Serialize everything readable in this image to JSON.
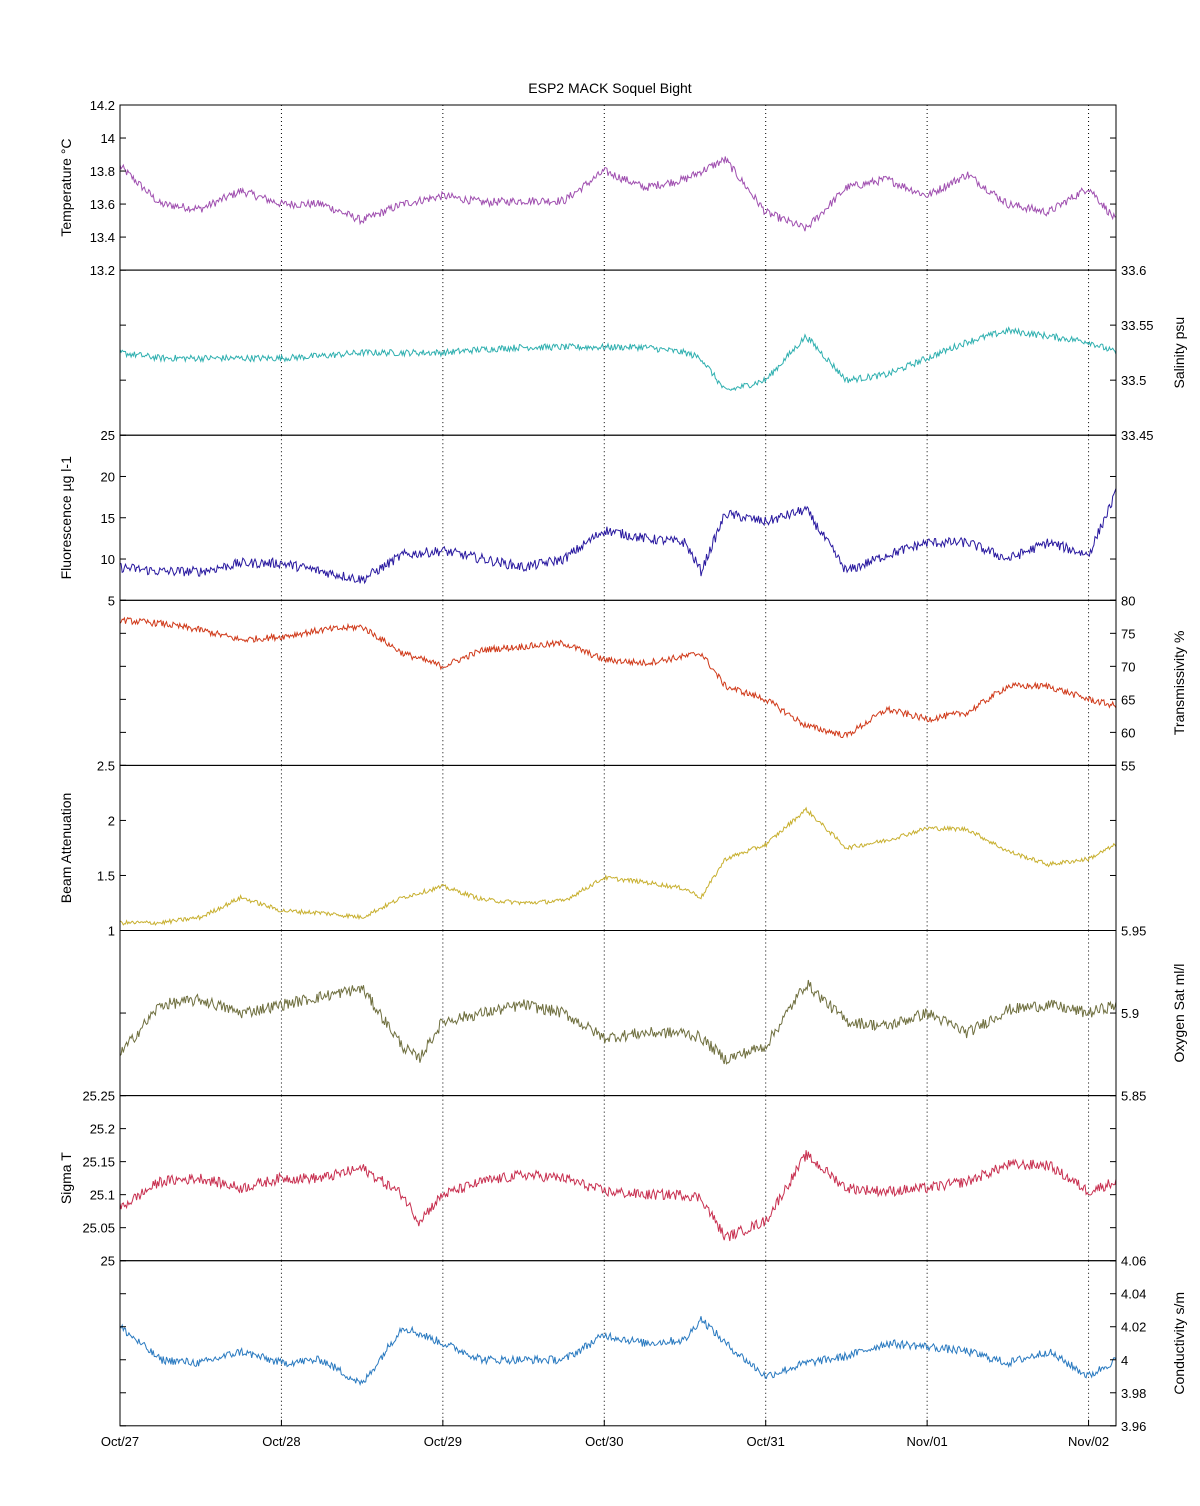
{
  "chart_data": {
    "type": "line",
    "title": "ESP2 MACK  Soquel Bight",
    "x_axis": {
      "ticks": [
        "Oct/27",
        "Oct/28",
        "Oct/29",
        "Oct/30",
        "Oct/31",
        "Nov/01",
        "Nov/02"
      ],
      "range_days": [
        0,
        6.17
      ],
      "grid": "dotted vertical"
    },
    "panels": [
      {
        "id": "temperature",
        "ylabel": "Temperature °C",
        "axis_side": "left",
        "ylim": [
          13.2,
          14.2
        ],
        "ticks": [
          13.2,
          13.4,
          13.6,
          13.8,
          14,
          14.2
        ],
        "tick_labels": [
          "13.2",
          "13.4",
          "13.6",
          "13.8",
          "14",
          "14.2"
        ],
        "color": "#a050b0",
        "x": [
          0,
          0.25,
          0.5,
          0.75,
          1.0,
          1.25,
          1.5,
          1.75,
          2.0,
          2.25,
          2.5,
          2.75,
          3.0,
          3.25,
          3.5,
          3.75,
          4.0,
          4.25,
          4.5,
          4.75,
          5.0,
          5.25,
          5.5,
          5.75,
          6.0,
          6.17
        ],
        "y": [
          13.83,
          13.6,
          13.57,
          13.68,
          13.6,
          13.6,
          13.5,
          13.6,
          13.65,
          13.61,
          13.62,
          13.62,
          13.8,
          13.7,
          13.75,
          13.87,
          13.55,
          13.45,
          13.7,
          13.75,
          13.65,
          13.78,
          13.6,
          13.55,
          13.7,
          13.5
        ],
        "noise": 0.025
      },
      {
        "id": "salinity",
        "ylabel": "Salinity psu",
        "axis_side": "right",
        "ylim": [
          33.45,
          33.6
        ],
        "ticks": [
          33.45,
          33.5,
          33.55,
          33.6
        ],
        "tick_labels": [
          "33.45",
          "33.5",
          "33.55",
          "33.6"
        ],
        "color": "#30b0b0",
        "x": [
          0,
          0.25,
          0.5,
          0.75,
          1.0,
          1.25,
          1.5,
          1.75,
          2.0,
          2.25,
          2.5,
          2.75,
          3.0,
          3.25,
          3.5,
          3.6,
          3.75,
          4.0,
          4.25,
          4.5,
          4.75,
          5.0,
          5.25,
          5.5,
          5.75,
          6.0,
          6.17
        ],
        "y": [
          33.525,
          33.52,
          33.52,
          33.52,
          33.52,
          33.522,
          33.525,
          33.525,
          33.525,
          33.528,
          33.53,
          33.53,
          33.53,
          33.53,
          33.525,
          33.52,
          33.49,
          33.5,
          33.54,
          33.5,
          33.505,
          33.52,
          33.535,
          33.545,
          33.54,
          33.535,
          33.525
        ],
        "noise": 0.003
      },
      {
        "id": "fluorescence",
        "ylabel": "Fluorescence µg l-1",
        "axis_side": "left",
        "ylim": [
          5,
          25
        ],
        "ticks": [
          5,
          10,
          15,
          20,
          25
        ],
        "tick_labels": [
          "5",
          "10",
          "15",
          "20",
          "25"
        ],
        "color": "#2a1aa0",
        "x": [
          0,
          0.25,
          0.5,
          0.75,
          1.0,
          1.25,
          1.5,
          1.75,
          2.0,
          2.25,
          2.5,
          2.75,
          3.0,
          3.25,
          3.5,
          3.6,
          3.75,
          4.0,
          4.25,
          4.5,
          4.75,
          5.0,
          5.25,
          5.5,
          5.75,
          6.0,
          6.17
        ],
        "y": [
          9,
          8.5,
          8.5,
          9.5,
          9.5,
          8.5,
          7.5,
          10.5,
          11,
          10,
          9,
          10,
          13.5,
          12.5,
          12,
          8.5,
          15.5,
          14.5,
          16,
          8.5,
          10.5,
          12,
          12,
          10,
          12,
          10.5,
          18
        ],
        "noise": 0.6
      },
      {
        "id": "transmissivity",
        "ylabel": "Transmissivity %",
        "axis_side": "right",
        "ylim": [
          55,
          80
        ],
        "ticks": [
          55,
          60,
          65,
          70,
          75,
          80
        ],
        "tick_labels": [
          "55",
          "60",
          "65",
          "70",
          "75",
          "80"
        ],
        "color": "#d03a1a",
        "x": [
          0,
          0.25,
          0.5,
          0.75,
          1.0,
          1.25,
          1.5,
          1.75,
          2.0,
          2.25,
          2.5,
          2.75,
          3.0,
          3.25,
          3.5,
          3.6,
          3.75,
          4.0,
          4.25,
          4.5,
          4.75,
          5.0,
          5.25,
          5.5,
          5.75,
          6.0,
          6.17
        ],
        "y": [
          77,
          76.5,
          75.5,
          74,
          74.5,
          75.5,
          76,
          72,
          70,
          72.5,
          73,
          73.5,
          71,
          70.5,
          71.5,
          72,
          67,
          65,
          61,
          59.5,
          63.5,
          62,
          63,
          67,
          67,
          65,
          64
        ],
        "noise": 0.5
      },
      {
        "id": "beam-attenuation",
        "ylabel": "Beam Attenuation",
        "axis_side": "left",
        "ylim": [
          1,
          2.5
        ],
        "ticks": [
          1,
          1.5,
          2,
          2.5
        ],
        "tick_labels": [
          "1",
          "1.5",
          "2",
          "2.5"
        ],
        "color": "#c8b030",
        "x": [
          0,
          0.25,
          0.5,
          0.75,
          1.0,
          1.25,
          1.5,
          1.75,
          2.0,
          2.25,
          2.5,
          2.75,
          3.0,
          3.25,
          3.5,
          3.6,
          3.75,
          4.0,
          4.25,
          4.5,
          4.75,
          5.0,
          5.25,
          5.5,
          5.75,
          6.0,
          6.17
        ],
        "y": [
          1.07,
          1.07,
          1.12,
          1.3,
          1.18,
          1.16,
          1.12,
          1.3,
          1.4,
          1.28,
          1.25,
          1.27,
          1.48,
          1.44,
          1.38,
          1.3,
          1.65,
          1.78,
          2.1,
          1.75,
          1.82,
          1.93,
          1.92,
          1.72,
          1.6,
          1.65,
          1.78
        ],
        "noise": 0.02
      },
      {
        "id": "oxygen-sat",
        "ylabel": "Oxygen Sat ml/l",
        "axis_side": "right",
        "ylim": [
          5.85,
          5.95
        ],
        "ticks": [
          5.85,
          5.9,
          5.95
        ],
        "tick_labels": [
          "5.85",
          "5.9",
          "5.95"
        ],
        "color": "#707040",
        "x": [
          0,
          0.25,
          0.5,
          0.75,
          1.0,
          1.25,
          1.5,
          1.75,
          1.85,
          2.0,
          2.25,
          2.5,
          2.75,
          3.0,
          3.25,
          3.5,
          3.6,
          3.75,
          4.0,
          4.25,
          4.5,
          4.75,
          5.0,
          5.25,
          5.5,
          5.75,
          6.0,
          6.17
        ],
        "y": [
          5.875,
          5.905,
          5.908,
          5.9,
          5.905,
          5.91,
          5.915,
          5.88,
          5.872,
          5.895,
          5.9,
          5.905,
          5.9,
          5.885,
          5.888,
          5.888,
          5.885,
          5.872,
          5.88,
          5.918,
          5.895,
          5.892,
          5.9,
          5.888,
          5.902,
          5.905,
          5.9,
          5.905
        ],
        "noise": 0.0035
      },
      {
        "id": "sigma-t",
        "ylabel": "Sigma T",
        "axis_side": "left",
        "ylim": [
          25,
          25.25
        ],
        "ticks": [
          25,
          25.05,
          25.1,
          25.15,
          25.2,
          25.25
        ],
        "tick_labels": [
          "25",
          "25.05",
          "25.1",
          "25.15",
          "25.2",
          "25.25"
        ],
        "color": "#c83050",
        "x": [
          0,
          0.25,
          0.5,
          0.75,
          1.0,
          1.25,
          1.5,
          1.75,
          1.85,
          2.0,
          2.25,
          2.5,
          2.75,
          3.0,
          3.25,
          3.5,
          3.6,
          3.75,
          4.0,
          4.25,
          4.5,
          4.75,
          5.0,
          5.25,
          5.5,
          5.75,
          6.0,
          6.17
        ],
        "y": [
          25.08,
          25.12,
          25.125,
          25.11,
          25.125,
          25.125,
          25.14,
          25.1,
          25.06,
          25.1,
          25.12,
          25.13,
          25.125,
          25.105,
          25.1,
          25.1,
          25.095,
          25.035,
          25.06,
          25.16,
          25.11,
          25.105,
          25.11,
          25.12,
          25.145,
          25.145,
          25.105,
          25.12
        ],
        "noise": 0.008
      },
      {
        "id": "conductivity",
        "ylabel": "Conductivity s/m",
        "axis_side": "right",
        "ylim": [
          3.96,
          4.06
        ],
        "ticks": [
          3.96,
          3.98,
          4,
          4.02,
          4.04,
          4.06
        ],
        "tick_labels": [
          "3.96",
          "3.98",
          "4",
          "4.02",
          "4.04",
          "4.06"
        ],
        "color": "#2a7ac0",
        "x": [
          0,
          0.25,
          0.5,
          0.75,
          1.0,
          1.25,
          1.5,
          1.75,
          2.0,
          2.25,
          2.5,
          2.75,
          3.0,
          3.25,
          3.5,
          3.6,
          3.75,
          4.0,
          4.25,
          4.5,
          4.75,
          5.0,
          5.25,
          5.5,
          5.75,
          6.0,
          6.17
        ],
        "y": [
          4.02,
          4.0,
          3.998,
          4.005,
          3.998,
          4.0,
          3.985,
          4.02,
          4.01,
          4.0,
          4.0,
          4.0,
          4.015,
          4.01,
          4.012,
          4.025,
          4.01,
          3.99,
          3.998,
          4.002,
          4.01,
          4.008,
          4.005,
          3.998,
          4.005,
          3.99,
          4.0
        ],
        "noise": 0.0025
      }
    ]
  }
}
